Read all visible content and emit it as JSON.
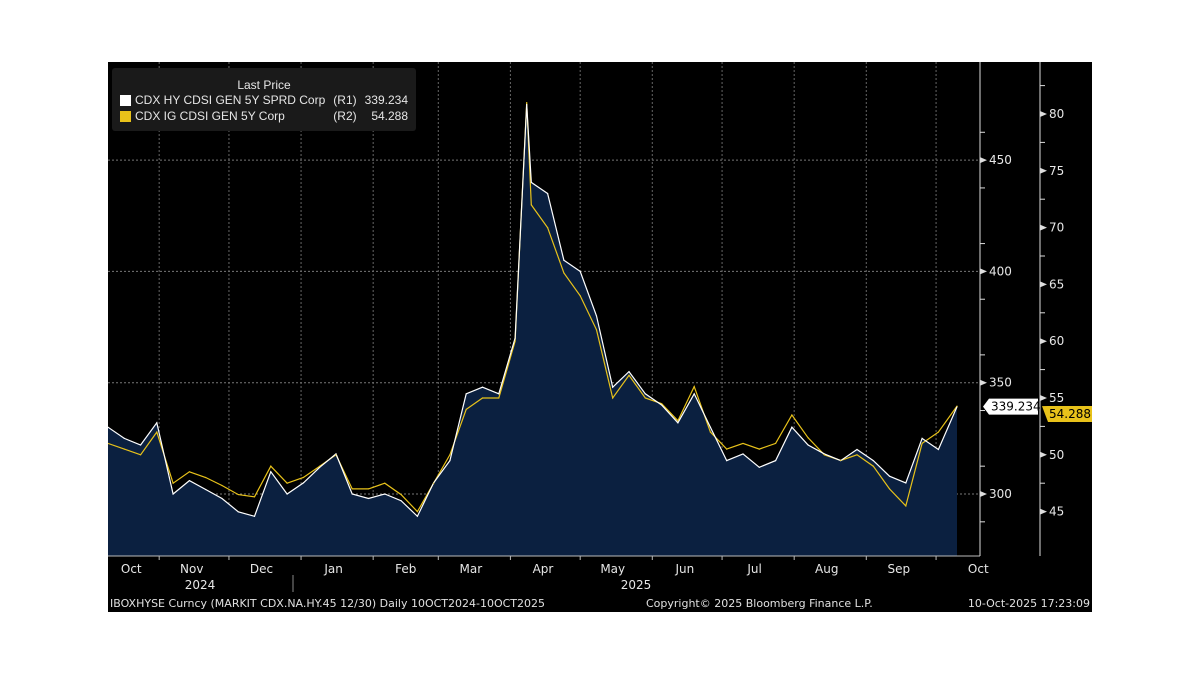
{
  "chart_data": {
    "type": "line",
    "legend": {
      "title": "Last Price",
      "placement": "top-left",
      "entries": [
        {
          "label": "CDX HY CDSI GEN 5Y SPRD Corp",
          "axis": "(R1)",
          "last": "339.234",
          "color": "#ffffff"
        },
        {
          "label": "CDX IG CDSI GEN 5Y Corp",
          "axis": "(R2)",
          "last": "54.288",
          "color": "#e8c21a"
        }
      ]
    },
    "x_months": [
      "Oct",
      "Nov",
      "Dec",
      "Jan",
      "Feb",
      "Mar",
      "Apr",
      "May",
      "Jun",
      "Jul",
      "Aug",
      "Sep",
      "Oct"
    ],
    "x_years": [
      "2024",
      "2025"
    ],
    "x_range": [
      "2024-10-10",
      "2025-10-10"
    ],
    "r1_axis": {
      "ticks": [
        300,
        350,
        400,
        450
      ],
      "range": [
        285,
        487
      ],
      "last_label": "339.234"
    },
    "r2_axis": {
      "ticks": [
        45,
        50,
        55,
        60,
        65,
        70,
        75,
        80
      ],
      "range": [
        43.3,
        83
      ],
      "last_label": "54.288"
    },
    "grid": true,
    "fill_color": "#0b2040",
    "dates": [
      "2024-10-10",
      "2024-10-17",
      "2024-10-24",
      "2024-10-31",
      "2024-11-07",
      "2024-11-14",
      "2024-11-21",
      "2024-11-28",
      "2024-12-05",
      "2024-12-12",
      "2024-12-19",
      "2024-12-26",
      "2025-01-02",
      "2025-01-09",
      "2025-01-16",
      "2025-01-23",
      "2025-01-30",
      "2025-02-06",
      "2025-02-13",
      "2025-02-20",
      "2025-02-27",
      "2025-03-06",
      "2025-03-13",
      "2025-03-20",
      "2025-03-27",
      "2025-04-03",
      "2025-04-08",
      "2025-04-10",
      "2025-04-17",
      "2025-04-24",
      "2025-05-01",
      "2025-05-08",
      "2025-05-15",
      "2025-05-22",
      "2025-05-29",
      "2025-06-05",
      "2025-06-12",
      "2025-06-19",
      "2025-06-26",
      "2025-07-03",
      "2025-07-10",
      "2025-07-17",
      "2025-07-24",
      "2025-07-31",
      "2025-08-07",
      "2025-08-14",
      "2025-08-21",
      "2025-08-28",
      "2025-09-04",
      "2025-09-11",
      "2025-09-18",
      "2025-09-25",
      "2025-10-02",
      "2025-10-10"
    ],
    "series": [
      {
        "name": "CDX HY CDSI GEN 5Y SPRD Corp",
        "axis": "R1",
        "values": [
          330,
          325,
          322,
          332,
          300,
          306,
          302,
          298,
          292,
          290,
          310,
          300,
          305,
          312,
          318,
          300,
          298,
          300,
          297,
          290,
          305,
          315,
          345,
          348,
          345,
          370,
          475,
          440,
          435,
          405,
          400,
          380,
          348,
          355,
          345,
          340,
          332,
          345,
          330,
          315,
          318,
          312,
          315,
          330,
          322,
          318,
          315,
          320,
          315,
          308,
          305,
          325,
          320,
          339.234
        ]
      },
      {
        "name": "CDX IG CDSI GEN 5Y Corp",
        "axis": "R2",
        "values": [
          51,
          50.5,
          50,
          52,
          47.5,
          48.5,
          48,
          47.3,
          46.5,
          46.3,
          49,
          47.5,
          48,
          49,
          50,
          47,
          47,
          47.5,
          46.5,
          45,
          47.5,
          50,
          54,
          55,
          55,
          60,
          81,
          72,
          70,
          66,
          64,
          61,
          55,
          57,
          55,
          54.5,
          53,
          56,
          52,
          50.5,
          51,
          50.5,
          51,
          53.5,
          51.5,
          50,
          49.5,
          50,
          49,
          47,
          45.5,
          51,
          52,
          54.288
        ]
      }
    ]
  },
  "footer": {
    "left": "IBOXHYSE Curncy (MARKIT CDX.NA.HY.45 12/30) Daily 10OCT2024-10OCT2025",
    "center": "Copyright© 2025 Bloomberg Finance L.P.",
    "right": "10-Oct-2025 17:23:09"
  }
}
